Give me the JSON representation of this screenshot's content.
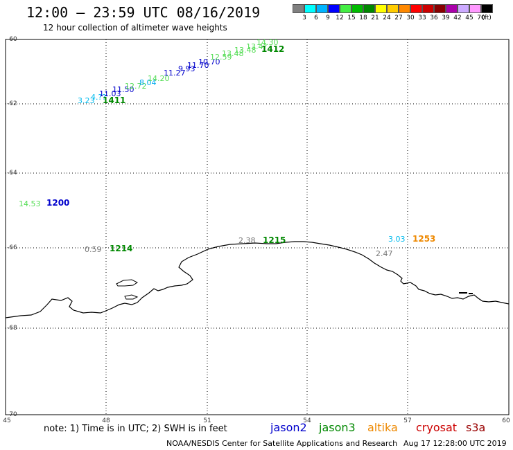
{
  "title": "12:00 – 23:59 UTC 08/16/2019",
  "subtitle": "12 hour collection of altimeter wave heights",
  "scale": {
    "colors": [
      "#808080",
      "#00ffff",
      "#00b4ff",
      "#0000ff",
      "#44ee44",
      "#00bb00",
      "#008800",
      "#ffff00",
      "#ffcc00",
      "#ff8800",
      "#ff0000",
      "#cc0000",
      "#880000",
      "#aa00aa",
      "#ccaaff",
      "#ff99ff",
      "#000000"
    ],
    "labels": [
      "3",
      "6",
      "9",
      "12",
      "15",
      "18",
      "21",
      "24",
      "27",
      "30",
      "33",
      "36",
      "39",
      "42",
      "45",
      "70",
      "(ft)"
    ]
  },
  "axes": {
    "y_labels": [
      "-60",
      "-62",
      "-64",
      "-66",
      "-68",
      "-70"
    ],
    "x_labels": [
      "45",
      "48",
      "51",
      "54",
      "57",
      "60"
    ]
  },
  "passes": [
    {
      "label": "1411",
      "color": "#008800"
    },
    {
      "label": "1412",
      "color": "#008800"
    },
    {
      "label": "1200",
      "color": "#0000cc"
    },
    {
      "label": "1214",
      "color": "#008800"
    },
    {
      "label": "1215",
      "color": "#008800"
    },
    {
      "label": "1253",
      "color": "#ee8800"
    }
  ],
  "observations": [
    {
      "value": "3.23",
      "color": "#00bbee"
    },
    {
      "value": "4.??",
      "color": "#00bbee"
    },
    {
      "value": "11.03",
      "color": "#0000cc"
    },
    {
      "value": "11.50",
      "color": "#0000cc"
    },
    {
      "value": "12.72",
      "color": "#55dd55"
    },
    {
      "value": "8.04",
      "color": "#00aaee"
    },
    {
      "value": "14.20",
      "color": "#55dd55"
    },
    {
      "value": "11.27",
      "color": "#0000cc"
    },
    {
      "value": "9.93",
      "color": "#0000cc"
    },
    {
      "value": "11.70",
      "color": "#0000cc"
    },
    {
      "value": "10.70",
      "color": "#0000cc"
    },
    {
      "value": "12.59",
      "color": "#55dd55"
    },
    {
      "value": "13.48",
      "color": "#55dd55"
    },
    {
      "value": "13.48",
      "color": "#55dd55"
    },
    {
      "value": "13.4?",
      "color": "#55dd55"
    },
    {
      "value": "14.30",
      "color": "#55dd55"
    },
    {
      "value": "14.53",
      "color": "#55dd55"
    },
    {
      "value": "0.59",
      "color": "#777777"
    },
    {
      "value": "2.38",
      "color": "#777777"
    },
    {
      "value": "2.47",
      "color": "#777777"
    },
    {
      "value": "3.03",
      "color": "#00bbee"
    }
  ],
  "note": "note:  1) Time is in UTC;  2) SWH is in feet",
  "satellites": [
    {
      "name": "jason2",
      "color": "#0000cc"
    },
    {
      "name": "jason3",
      "color": "#008800"
    },
    {
      "name": "altika",
      "color": "#ee8800"
    },
    {
      "name": "cryosat",
      "color": "#cc0000"
    },
    {
      "name": "s3a",
      "color": "#990000"
    }
  ],
  "footer": "NOAA/NESDIS Center for Satellite Applications and Research",
  "footer_time": "Aug 17 12:28:00 UTC 2019"
}
